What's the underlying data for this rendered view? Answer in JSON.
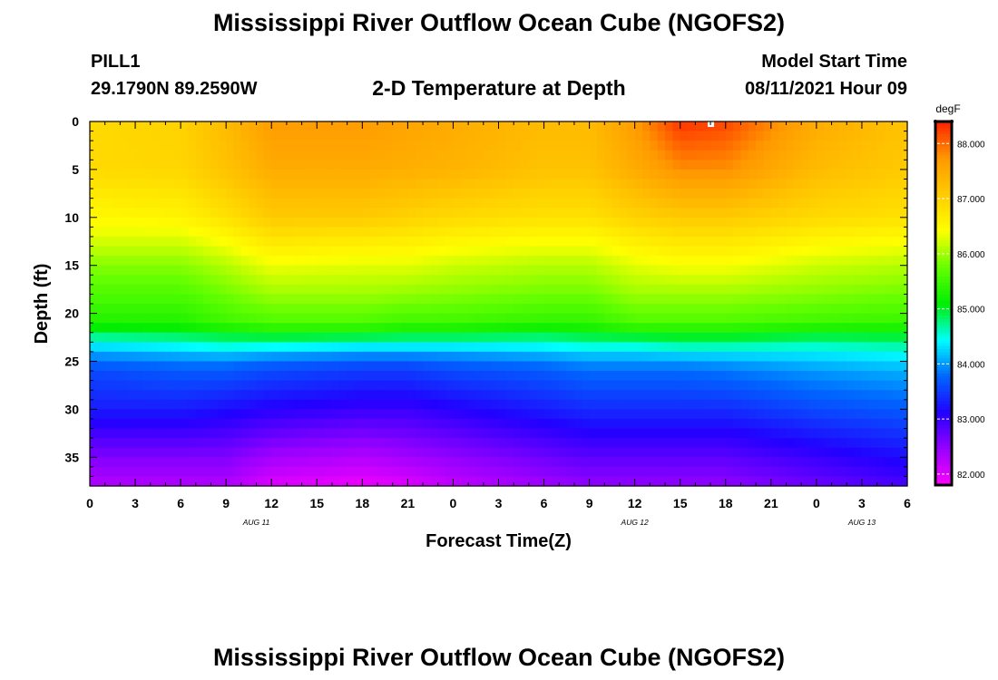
{
  "title": "Mississippi River Outflow Ocean Cube (NGOFS2)",
  "footer_title": "Mississippi River Outflow Ocean Cube (NGOFS2)",
  "station": {
    "name": "PILL1",
    "coords": "29.1790N  89.2590W"
  },
  "model_start": {
    "label": "Model Start Time",
    "value": "08/11/2021 Hour 09"
  },
  "chart_data": {
    "type": "heatmap",
    "title": "2-D Temperature at Depth",
    "xlabel": "Forecast Time(Z)",
    "ylabel": "Depth (ft)",
    "x_tick_labels": [
      "0",
      "3",
      "6",
      "9",
      "12",
      "15",
      "18",
      "21",
      "0",
      "3",
      "6",
      "9",
      "12",
      "15",
      "18",
      "21",
      "0",
      "3",
      "6"
    ],
    "x_hours": [
      0,
      54
    ],
    "date_labels": [
      {
        "label": "AUG  11",
        "hour": 11
      },
      {
        "label": "AUG  12",
        "hour": 36
      },
      {
        "label": "AUG  13",
        "hour": 51
      }
    ],
    "y_ticks": [
      0,
      5,
      10,
      15,
      20,
      25,
      30,
      35
    ],
    "ylim": [
      0,
      38
    ],
    "y_inverted": true,
    "colorbar": {
      "unit": "degF",
      "ticks": [
        "82.000",
        "83.000",
        "84.000",
        "85.000",
        "86.000",
        "87.000",
        "88.000"
      ],
      "range": [
        81.8,
        88.4
      ],
      "colors": [
        "#ff00ff",
        "#9900ff",
        "#2200ff",
        "#0066ff",
        "#00ffff",
        "#00ee00",
        "#66ff00",
        "#ffff00",
        "#ffcc00",
        "#ff9900",
        "#ff2200"
      ]
    },
    "time_hours": [
      0,
      6,
      9,
      12,
      18,
      21,
      24,
      30,
      33,
      36,
      39,
      42,
      48,
      54
    ],
    "profiles": {
      "depths": [
        0,
        5,
        10,
        12,
        15,
        18,
        21,
        22,
        23,
        24,
        25,
        26,
        30,
        35,
        38
      ],
      "values": [
        [
          86.9,
          86.9,
          86.5,
          86.3,
          85.9,
          85.6,
          85.3,
          84.9,
          84.5,
          84.1,
          83.8,
          83.6,
          83.3,
          82.6,
          82.3
        ],
        [
          87.0,
          86.95,
          86.55,
          86.3,
          85.9,
          85.6,
          85.3,
          85.0,
          84.6,
          84.2,
          83.9,
          83.7,
          83.3,
          82.6,
          82.3
        ],
        [
          87.3,
          87.2,
          86.8,
          86.5,
          86.1,
          85.8,
          85.5,
          85.1,
          84.7,
          84.3,
          83.9,
          83.7,
          83.2,
          82.6,
          82.3
        ],
        [
          87.7,
          87.5,
          87.1,
          86.8,
          86.35,
          86.0,
          85.6,
          85.2,
          84.7,
          84.2,
          83.8,
          83.6,
          83.1,
          82.4,
          82.0
        ],
        [
          87.7,
          87.5,
          87.1,
          86.75,
          86.3,
          86.0,
          85.6,
          85.2,
          84.6,
          84.1,
          83.7,
          83.5,
          83.0,
          82.3,
          81.9
        ],
        [
          87.6,
          87.45,
          87.0,
          86.7,
          86.3,
          85.95,
          85.5,
          85.1,
          84.6,
          84.1,
          83.7,
          83.5,
          83.0,
          82.4,
          82.0
        ],
        [
          87.5,
          87.4,
          86.9,
          86.6,
          86.2,
          85.9,
          85.5,
          85.1,
          84.6,
          84.1,
          83.8,
          83.6,
          83.1,
          82.5,
          82.2
        ],
        [
          87.3,
          87.2,
          86.8,
          86.5,
          86.1,
          85.8,
          85.4,
          85.0,
          84.6,
          84.2,
          83.9,
          83.7,
          83.3,
          82.7,
          82.4
        ],
        [
          87.3,
          87.2,
          86.8,
          86.5,
          86.1,
          85.8,
          85.4,
          85.1,
          84.7,
          84.3,
          84.0,
          83.8,
          83.4,
          82.8,
          82.5
        ],
        [
          87.7,
          87.5,
          87.0,
          86.7,
          86.3,
          86.0,
          85.6,
          85.2,
          84.7,
          84.3,
          84.0,
          83.8,
          83.4,
          82.8,
          82.5
        ],
        [
          88.3,
          87.8,
          87.1,
          86.8,
          86.4,
          86.0,
          85.6,
          85.2,
          84.8,
          84.4,
          84.0,
          83.8,
          83.4,
          82.8,
          82.5
        ],
        [
          88.2,
          87.8,
          87.1,
          86.8,
          86.4,
          86.0,
          85.6,
          85.2,
          84.8,
          84.4,
          84.05,
          83.85,
          83.4,
          82.8,
          82.5
        ],
        [
          87.5,
          87.3,
          86.9,
          86.6,
          86.2,
          85.9,
          85.5,
          85.1,
          84.7,
          84.4,
          84.2,
          84.0,
          83.6,
          83.0,
          82.7
        ],
        [
          87.2,
          87.1,
          86.8,
          86.5,
          86.1,
          85.8,
          85.45,
          85.1,
          84.8,
          84.5,
          84.3,
          84.1,
          83.7,
          83.2,
          82.9
        ]
      ]
    }
  }
}
